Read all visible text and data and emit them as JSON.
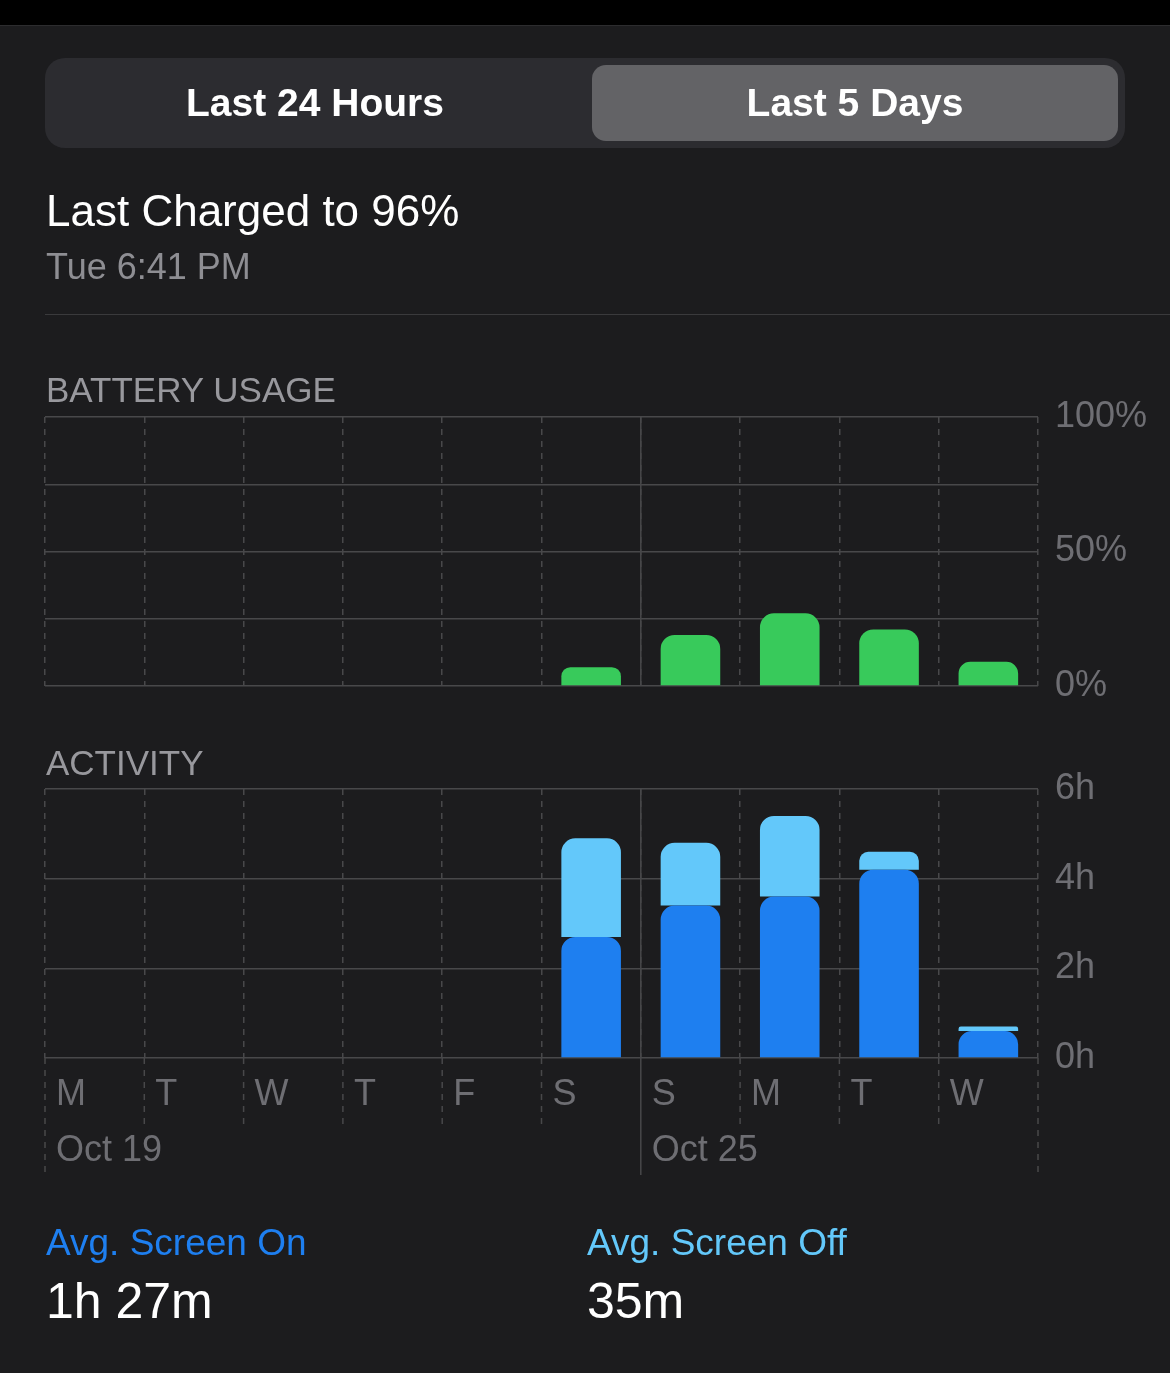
{
  "chart_data": [
    {
      "type": "other",
      "title": "Last Charged to 96%",
      "subtitle": "Tue 6:41 PM",
      "annotations": [
        "Last 24 Hours",
        "Last 5 Days"
      ]
    },
    {
      "type": "bar",
      "title": "BATTERY USAGE",
      "categories": [
        null,
        null,
        null,
        null,
        null,
        null,
        null,
        null,
        null,
        null
      ],
      "values": [
        null,
        null,
        null,
        null,
        null,
        7,
        19,
        27,
        21,
        9
      ],
      "color": "#38ca5b",
      "ylim": [
        0,
        100
      ],
      "yticks": [
        {
          "value": 0,
          "label": "0%"
        },
        {
          "value": 25,
          "label": null
        },
        {
          "value": 50,
          "label": "50%"
        },
        {
          "value": 75,
          "label": null
        },
        {
          "value": 100,
          "label": "100%"
        }
      ],
      "grid": true,
      "tick_labels": "y"
    },
    {
      "type": "bar",
      "stacked": true,
      "title": "ACTIVITY",
      "categories": [
        "M\nOct 19",
        "T",
        "W",
        "T",
        "F",
        "S",
        "S\nOct 25",
        "M",
        "T",
        "W"
      ],
      "series": [
        {
          "name": "Avg. Screen On",
          "color": "#1e7ff0",
          "values": [
            null,
            null,
            null,
            null,
            null,
            2.7,
            3.4,
            3.6,
            4.2,
            0.6
          ]
        },
        {
          "name": "Avg. Screen Off",
          "color": "#63c8fa",
          "values": [
            null,
            null,
            null,
            null,
            null,
            2.2,
            1.4,
            1.8,
            0.4,
            0.1
          ]
        }
      ],
      "ylim": [
        0,
        6
      ],
      "yticks": [
        {
          "value": 0,
          "label": "0h"
        },
        {
          "value": 2,
          "label": "2h"
        },
        {
          "value": 4,
          "label": "4h"
        },
        {
          "value": 6,
          "label": "6h"
        }
      ],
      "grid": true,
      "legend": "bottom",
      "annotations": [
        "1h 27m",
        "35m"
      ]
    }
  ]
}
